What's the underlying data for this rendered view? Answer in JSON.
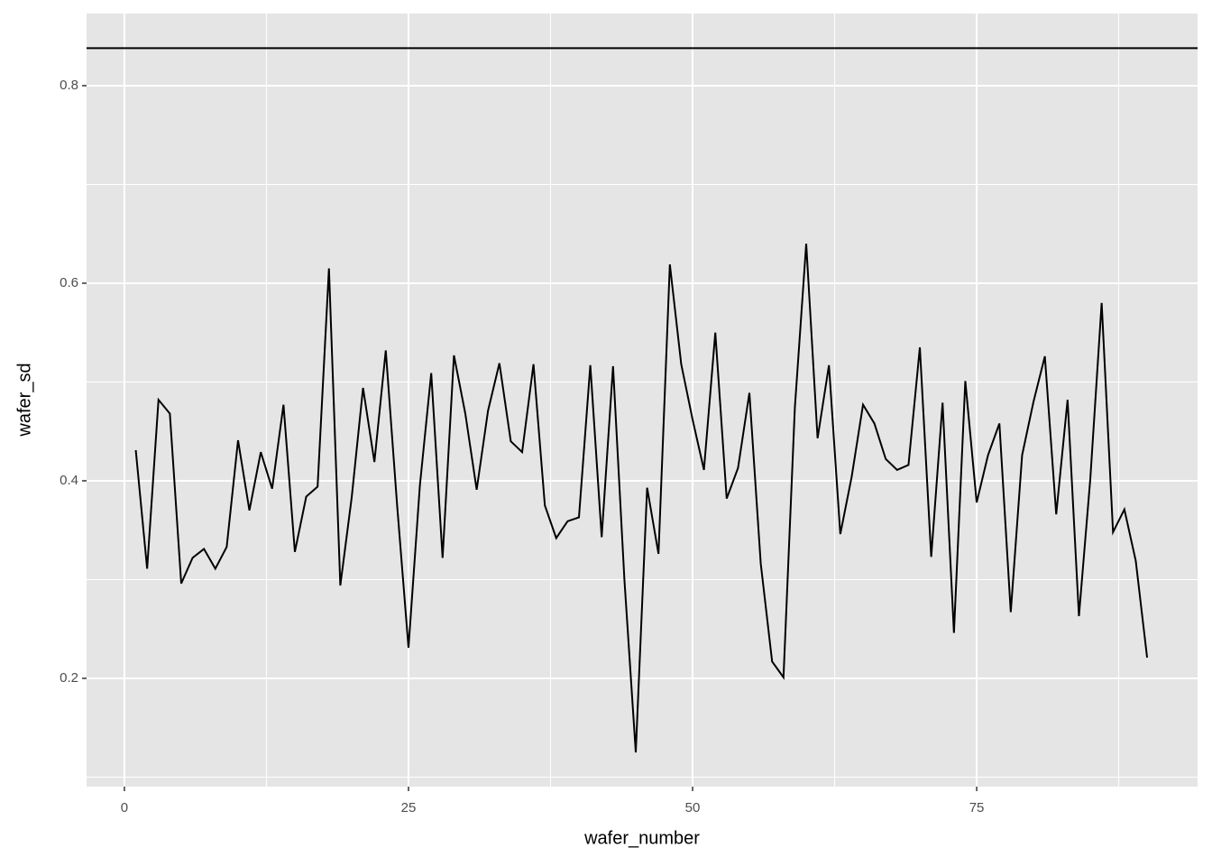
{
  "chart_data": {
    "type": "line",
    "x_label": "wafer_number",
    "y_label": "wafer_sd",
    "x": [
      1,
      2,
      3,
      4,
      5,
      6,
      7,
      8,
      9,
      10,
      11,
      12,
      13,
      14,
      15,
      16,
      17,
      18,
      19,
      20,
      21,
      22,
      23,
      24,
      25,
      26,
      27,
      28,
      29,
      30,
      31,
      32,
      33,
      34,
      35,
      36,
      37,
      38,
      39,
      40,
      41,
      42,
      43,
      44,
      45,
      46,
      47,
      48,
      49,
      50,
      51,
      52,
      53,
      54,
      55,
      56,
      57,
      58,
      59,
      60,
      61,
      62,
      63,
      64,
      65,
      66,
      67,
      68,
      69,
      70,
      71,
      72,
      73,
      74,
      75,
      76,
      77,
      78,
      79,
      80,
      81,
      82,
      83,
      84,
      85,
      86,
      87,
      88,
      89,
      90
    ],
    "series": [
      {
        "color": "#000000",
        "values": [
          0.431,
          0.311,
          0.482,
          0.468,
          0.296,
          0.322,
          0.331,
          0.311,
          0.333,
          0.441,
          0.37,
          0.429,
          0.392,
          0.477,
          0.328,
          0.384,
          0.394,
          0.615,
          0.294,
          0.383,
          0.494,
          0.419,
          0.532,
          0.375,
          0.231,
          0.395,
          0.509,
          0.322,
          0.527,
          0.468,
          0.391,
          0.471,
          0.519,
          0.44,
          0.429,
          0.518,
          0.375,
          0.342,
          0.359,
          0.363,
          0.517,
          0.343,
          0.516,
          0.3,
          0.125,
          0.393,
          0.326,
          0.619,
          0.518,
          0.462,
          0.411,
          0.55,
          0.382,
          0.413,
          0.489,
          0.316,
          0.217,
          0.201,
          0.474,
          0.64,
          0.443,
          0.517,
          0.346,
          0.404,
          0.477,
          0.458,
          0.422,
          0.411,
          0.416,
          0.535,
          0.323,
          0.479,
          0.246,
          0.501,
          0.378,
          0.426,
          0.458,
          0.267,
          0.426,
          0.48,
          0.526,
          0.366,
          0.482,
          0.263,
          0.402,
          0.58,
          0.348,
          0.371,
          0.319,
          0.221
        ]
      }
    ],
    "hline": 0.838,
    "xlim": [
      -3.33,
      94.44
    ],
    "ylim": [
      0.0904,
      0.873
    ],
    "xticks": [
      0,
      25,
      50,
      75
    ],
    "yticks": [
      0.2,
      0.4,
      0.6,
      0.8
    ],
    "x_minor_ticks": [
      12.5,
      37.5,
      62.5,
      87.5
    ],
    "y_minor_ticks": [
      0.1,
      0.3,
      0.5,
      0.7
    ],
    "grid": true,
    "panel_color": "#e5e5e5"
  }
}
